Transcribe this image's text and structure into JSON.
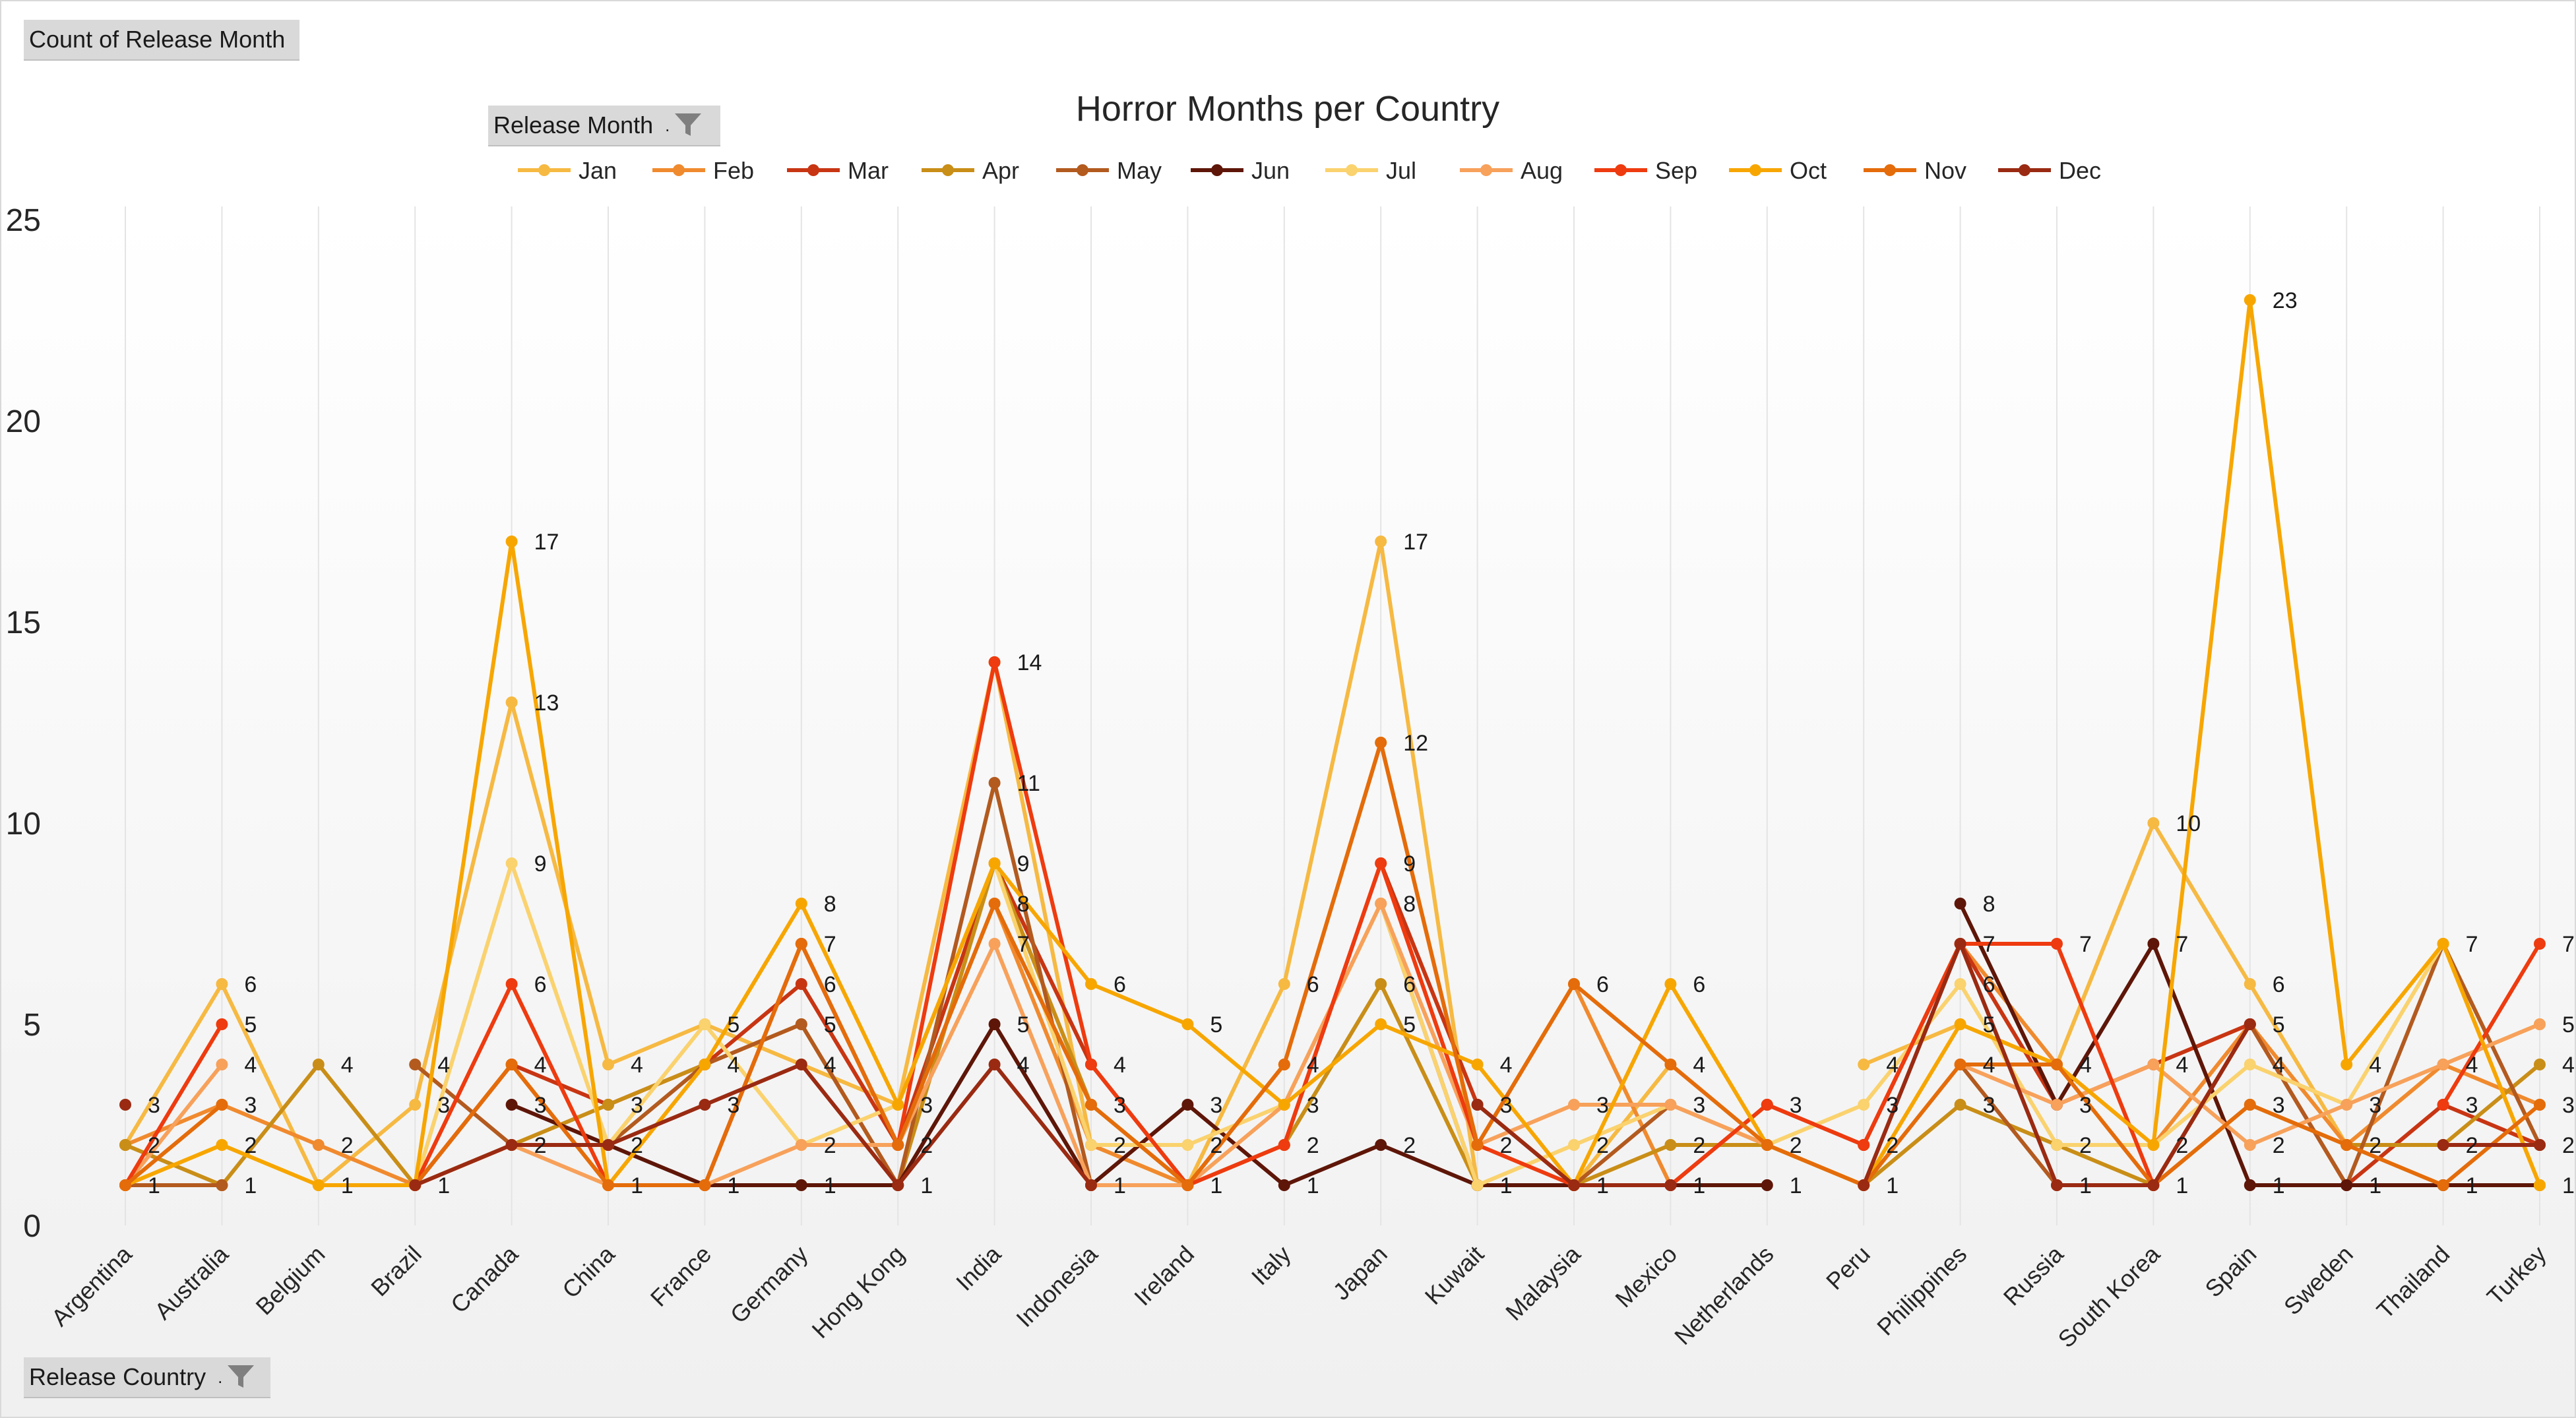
{
  "value_button": {
    "label": "Count of Release Month"
  },
  "legend_button": {
    "label": "Release Month"
  },
  "axis_button": {
    "label": "Release Country"
  },
  "icons": {
    "filter": "filter-icon"
  },
  "chart_data": {
    "type": "line",
    "title": "Horror Months per Country",
    "xlabel": "",
    "ylabel": "",
    "ylim": [
      0,
      25
    ],
    "yticks": [
      0,
      5,
      10,
      15,
      20,
      25
    ],
    "grid": "vertical",
    "legend_position": "top",
    "categories": [
      "Argentina",
      "Australia",
      "Belgium",
      "Brazil",
      "Canada",
      "China",
      "France",
      "Germany",
      "Hong Kong",
      "India",
      "Indonesia",
      "Ireland",
      "Italy",
      "Japan",
      "Kuwait",
      "Malaysia",
      "Mexico",
      "Netherlands",
      "Peru",
      "Philippines",
      "Russia",
      "South Korea",
      "Spain",
      "Sweden",
      "Thailand",
      "Turkey"
    ],
    "series": [
      {
        "name": "Jan",
        "color": "#F6B942",
        "values": [
          2,
          6,
          1,
          3,
          13,
          4,
          5,
          4,
          3,
          14,
          2,
          1,
          6,
          17,
          1,
          1,
          4,
          null,
          4,
          5,
          4,
          10,
          6,
          2,
          4,
          5
        ]
      },
      {
        "name": "Feb",
        "color": "#F08A2E",
        "values": [
          2,
          3,
          2,
          1,
          4,
          1,
          1,
          7,
          2,
          8,
          2,
          1,
          4,
          12,
          2,
          6,
          1,
          null,
          2,
          7,
          4,
          2,
          5,
          2,
          4,
          3
        ]
      },
      {
        "name": "Mar",
        "color": "#C83513",
        "values": [
          1,
          1,
          null,
          1,
          4,
          3,
          4,
          6,
          2,
          9,
          4,
          1,
          2,
          9,
          3,
          1,
          1,
          3,
          2,
          7,
          3,
          4,
          5,
          1,
          3,
          2
        ]
      },
      {
        "name": "Apr",
        "color": "#C98E17",
        "values": [
          2,
          1,
          4,
          1,
          2,
          3,
          4,
          5,
          1,
          9,
          3,
          1,
          2,
          6,
          1,
          1,
          2,
          2,
          1,
          3,
          2,
          1,
          3,
          2,
          2,
          4
        ]
      },
      {
        "name": "May",
        "color": "#B35A1F",
        "values": [
          1,
          1,
          null,
          4,
          2,
          2,
          4,
          5,
          1,
          11,
          1,
          1,
          null,
          8,
          1,
          1,
          3,
          2,
          null,
          4,
          1,
          1,
          5,
          1,
          7,
          2
        ]
      },
      {
        "name": "Jun",
        "color": "#5E1608",
        "values": [
          1,
          null,
          null,
          null,
          3,
          2,
          1,
          1,
          1,
          5,
          1,
          3,
          1,
          2,
          1,
          1,
          1,
          1,
          null,
          8,
          3,
          7,
          1,
          1,
          1,
          1
        ]
      },
      {
        "name": "Jul",
        "color": "#FAD26E",
        "values": [
          1,
          2,
          1,
          1,
          9,
          2,
          5,
          2,
          3,
          9,
          2,
          2,
          3,
          8,
          1,
          2,
          3,
          2,
          3,
          6,
          2,
          2,
          4,
          3,
          7,
          1
        ]
      },
      {
        "name": "Aug",
        "color": "#F7A15B",
        "values": [
          1,
          4,
          null,
          1,
          2,
          1,
          1,
          2,
          2,
          7,
          1,
          1,
          3,
          8,
          2,
          3,
          3,
          2,
          null,
          4,
          3,
          4,
          2,
          3,
          4,
          5
        ]
      },
      {
        "name": "Sep",
        "color": "#EE3B0F",
        "values": [
          1,
          5,
          null,
          1,
          6,
          1,
          1,
          7,
          2,
          14,
          4,
          1,
          2,
          9,
          2,
          1,
          1,
          3,
          2,
          7,
          7,
          1,
          5,
          null,
          3,
          7
        ]
      },
      {
        "name": "Oct",
        "color": "#F7A600",
        "values": [
          1,
          2,
          1,
          1,
          17,
          1,
          4,
          8,
          3,
          9,
          6,
          5,
          3,
          5,
          4,
          1,
          6,
          2,
          1,
          5,
          4,
          2,
          23,
          4,
          7,
          1
        ]
      },
      {
        "name": "Nov",
        "color": "#E46C0A",
        "values": [
          1,
          3,
          null,
          1,
          4,
          1,
          1,
          7,
          2,
          8,
          3,
          1,
          4,
          12,
          2,
          6,
          4,
          2,
          1,
          4,
          4,
          1,
          3,
          2,
          1,
          3
        ]
      },
      {
        "name": "Dec",
        "color": "#9A2A12",
        "values": [
          3,
          null,
          null,
          1,
          2,
          2,
          3,
          4,
          1,
          4,
          1,
          null,
          null,
          null,
          3,
          1,
          1,
          null,
          1,
          7,
          1,
          1,
          5,
          null,
          2,
          2
        ]
      }
    ],
    "point_labels": [
      {
        "category": "Argentina",
        "labels": [
          3,
          2,
          1
        ]
      },
      {
        "category": "Australia",
        "labels": [
          6,
          5,
          4,
          3,
          2,
          1
        ]
      },
      {
        "category": "Belgium",
        "labels": [
          4,
          2,
          1
        ]
      },
      {
        "category": "Brazil",
        "labels": [
          4,
          3,
          1
        ]
      },
      {
        "category": "Canada",
        "labels": [
          17,
          13,
          9,
          6,
          4,
          3,
          2
        ]
      },
      {
        "category": "China",
        "labels": [
          4,
          3,
          2,
          1
        ]
      },
      {
        "category": "France",
        "labels": [
          5,
          4,
          3,
          1
        ]
      },
      {
        "category": "Germany",
        "labels": [
          8,
          7,
          6,
          5,
          4,
          2,
          1
        ]
      },
      {
        "category": "Hong Kong",
        "labels": [
          3,
          2,
          1
        ]
      },
      {
        "category": "India",
        "labels": [
          14,
          11,
          9,
          8,
          7,
          5,
          4
        ]
      },
      {
        "category": "Indonesia",
        "labels": [
          6,
          4,
          3,
          2,
          1
        ]
      },
      {
        "category": "Ireland",
        "labels": [
          5,
          3,
          2,
          1
        ]
      },
      {
        "category": "Italy",
        "labels": [
          6,
          4,
          3,
          2,
          1
        ]
      },
      {
        "category": "Japan",
        "labels": [
          17,
          12,
          9,
          8,
          6,
          5,
          2
        ]
      },
      {
        "category": "Kuwait",
        "labels": [
          4,
          3,
          2,
          1
        ]
      },
      {
        "category": "Malaysia",
        "labels": [
          6,
          3,
          2,
          1
        ]
      },
      {
        "category": "Mexico",
        "labels": [
          6,
          4,
          3,
          2,
          1
        ]
      },
      {
        "category": "Netherlands",
        "labels": [
          3,
          2,
          1
        ]
      },
      {
        "category": "Peru",
        "labels": [
          4,
          3,
          2,
          1
        ]
      },
      {
        "category": "Philippines",
        "labels": [
          8,
          7,
          6,
          5,
          4,
          3
        ]
      },
      {
        "category": "Russia",
        "labels": [
          7,
          4,
          3,
          2,
          1
        ]
      },
      {
        "category": "South Korea",
        "labels": [
          10,
          7,
          4,
          2,
          1
        ]
      },
      {
        "category": "Spain",
        "labels": [
          23,
          6,
          5,
          4,
          3,
          2,
          1
        ]
      },
      {
        "category": "Sweden",
        "labels": [
          4,
          3,
          2,
          1
        ]
      },
      {
        "category": "Thailand",
        "labels": [
          7,
          4,
          3,
          2,
          1
        ]
      },
      {
        "category": "Turkey",
        "labels": [
          7,
          5,
          4,
          3,
          2,
          1
        ]
      }
    ]
  }
}
